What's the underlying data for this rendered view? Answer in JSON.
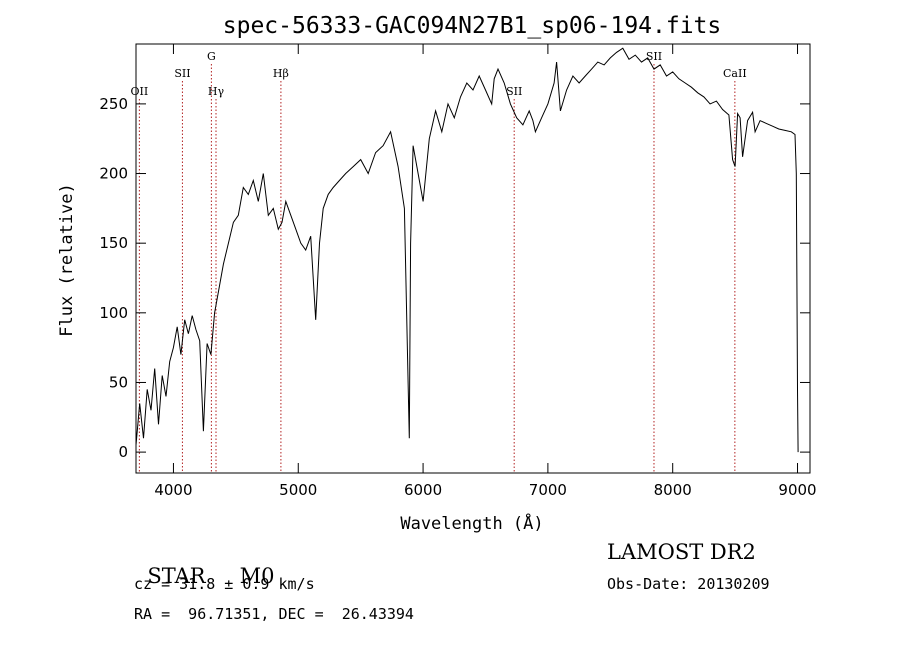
{
  "chart_data": {
    "type": "line",
    "title": "spec-56333-GAC094N27B1_sp06-194.fits",
    "xlabel": "Wavelength (Å)",
    "ylabel": "Flux (relative)",
    "xlim": [
      3700,
      9100
    ],
    "ylim": [
      -15,
      293
    ],
    "x_ticks": [
      4000,
      5000,
      6000,
      7000,
      8000,
      9000
    ],
    "y_ticks": [
      0,
      50,
      100,
      150,
      200,
      250
    ],
    "grid": false,
    "line_color": "#000000",
    "marker_color": "#b22222",
    "spectral_lines": [
      {
        "name": "OII",
        "wavelength": 3727,
        "label_row": "low"
      },
      {
        "name": "SII",
        "wavelength": 4072,
        "label_row": "mid"
      },
      {
        "name": "G",
        "wavelength": 4304,
        "label_row": "high"
      },
      {
        "name": "Hγ",
        "wavelength": 4341,
        "label_row": "low"
      },
      {
        "name": "Hβ",
        "wavelength": 4861,
        "label_row": "mid"
      },
      {
        "name": "SII",
        "wavelength": 6730,
        "label_row": "low"
      },
      {
        "name": "SII",
        "wavelength": 7850,
        "label_row": "high"
      },
      {
        "name": "CaII",
        "wavelength": 8498,
        "label_row": "mid"
      }
    ],
    "x": [
      3700,
      3730,
      3760,
      3790,
      3820,
      3850,
      3880,
      3910,
      3940,
      3970,
      4000,
      4030,
      4060,
      4090,
      4120,
      4150,
      4180,
      4210,
      4240,
      4270,
      4300,
      4330,
      4360,
      4400,
      4440,
      4480,
      4520,
      4560,
      4600,
      4640,
      4680,
      4720,
      4760,
      4800,
      4840,
      4870,
      4900,
      4940,
      4980,
      5020,
      5060,
      5100,
      5140,
      5170,
      5200,
      5240,
      5280,
      5330,
      5380,
      5440,
      5500,
      5560,
      5620,
      5680,
      5740,
      5800,
      5850,
      5880,
      5890,
      5900,
      5920,
      5960,
      6000,
      6050,
      6100,
      6150,
      6200,
      6250,
      6300,
      6350,
      6400,
      6450,
      6500,
      6550,
      6570,
      6600,
      6650,
      6700,
      6750,
      6800,
      6850,
      6880,
      6900,
      6950,
      7000,
      7050,
      7070,
      7100,
      7150,
      7200,
      7250,
      7300,
      7350,
      7400,
      7450,
      7500,
      7550,
      7600,
      7650,
      7700,
      7750,
      7800,
      7850,
      7900,
      7950,
      8000,
      8050,
      8100,
      8150,
      8200,
      8250,
      8300,
      8350,
      8400,
      8450,
      8480,
      8500,
      8520,
      8540,
      8560,
      8600,
      8640,
      8660,
      8700,
      8750,
      8800,
      8850,
      8900,
      8950,
      8980,
      8990,
      9000,
      9005
    ],
    "y": [
      5,
      35,
      10,
      45,
      30,
      60,
      20,
      55,
      40,
      65,
      75,
      90,
      70,
      95,
      85,
      98,
      88,
      80,
      15,
      78,
      70,
      100,
      115,
      135,
      150,
      165,
      170,
      190,
      185,
      195,
      180,
      200,
      170,
      175,
      160,
      165,
      180,
      170,
      160,
      150,
      145,
      155,
      95,
      150,
      175,
      185,
      190,
      195,
      200,
      205,
      210,
      200,
      215,
      220,
      230,
      205,
      175,
      50,
      10,
      150,
      220,
      200,
      180,
      225,
      245,
      230,
      250,
      240,
      255,
      265,
      260,
      270,
      260,
      250,
      268,
      275,
      265,
      250,
      240,
      235,
      245,
      238,
      230,
      240,
      250,
      265,
      280,
      245,
      260,
      270,
      265,
      270,
      275,
      280,
      278,
      283,
      287,
      290,
      282,
      285,
      280,
      283,
      275,
      278,
      270,
      273,
      268,
      265,
      262,
      258,
      255,
      250,
      252,
      246,
      242,
      210,
      205,
      243,
      240,
      212,
      238,
      244,
      230,
      238,
      236,
      234,
      232,
      231,
      230,
      228,
      200,
      45,
      0
    ]
  },
  "info": {
    "class_label": "STAR",
    "subclass": "M0",
    "survey": "LAMOST DR2",
    "cz_text": "cz = 31.8 ± 0.9 km/s",
    "obs_date_text": "Obs-Date: 20130209",
    "radec_text": "RA =  96.71351, DEC =  26.43394"
  }
}
